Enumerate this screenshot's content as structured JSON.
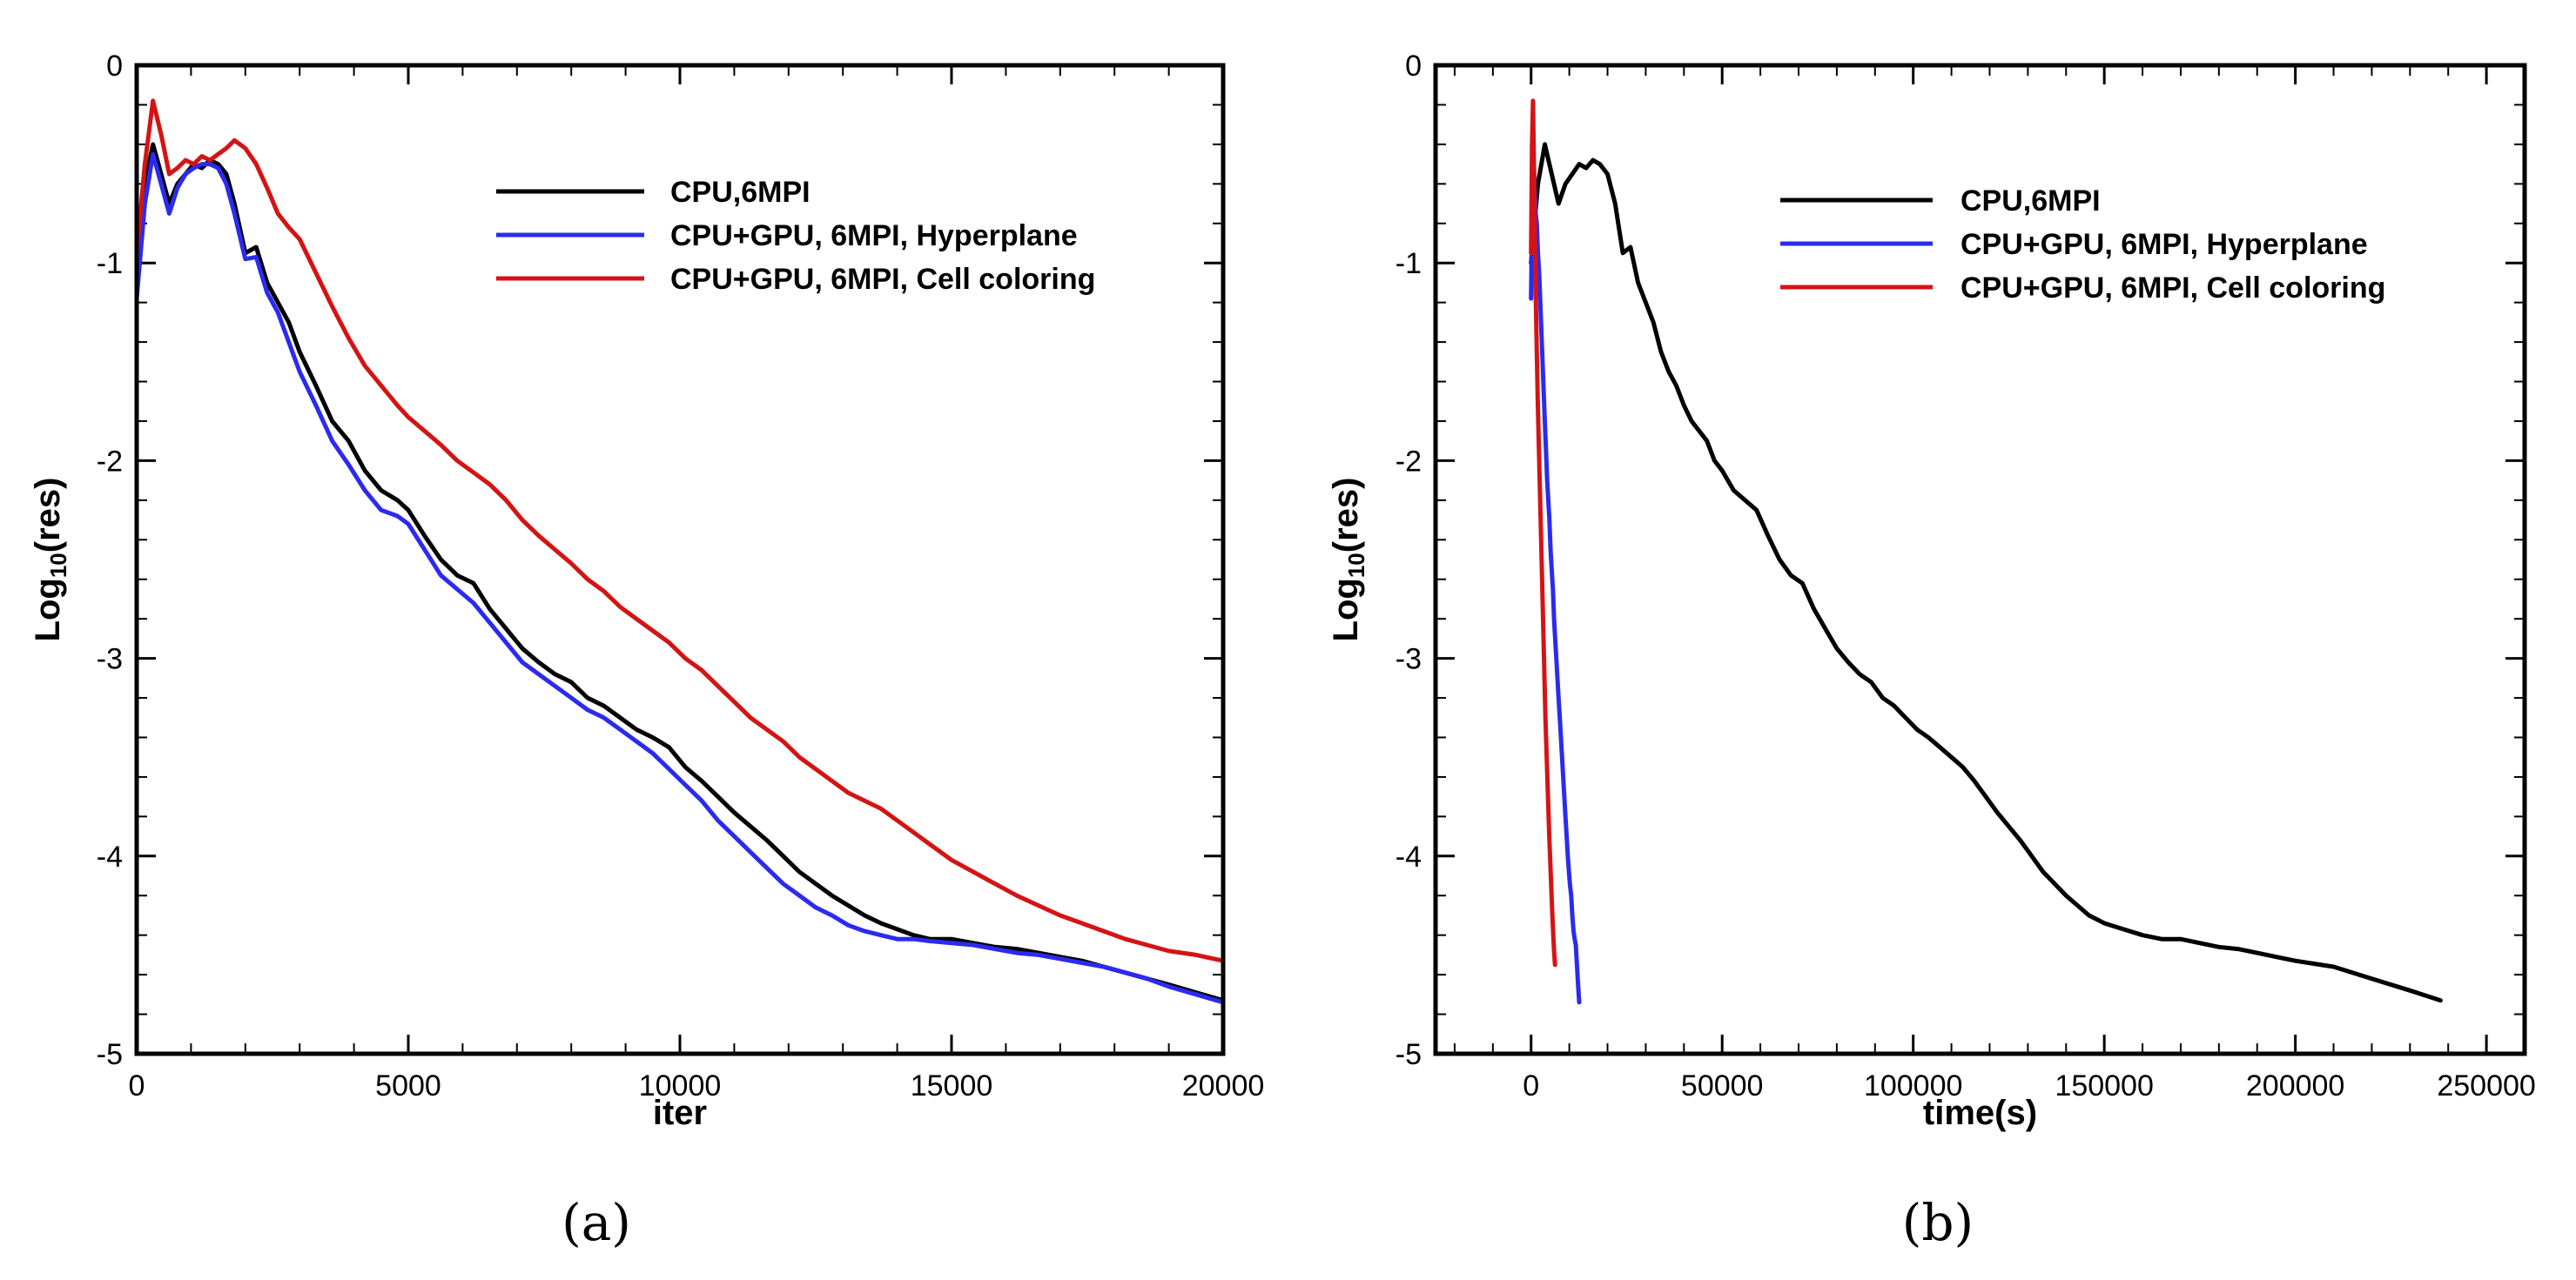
{
  "chart_data": [
    {
      "type": "line",
      "panel_label": "(a)",
      "xlabel": "iter",
      "ylabel_base": "Log",
      "ylabel_sub": "10",
      "ylabel_rest": "(res)",
      "xlim": [
        0,
        20000
      ],
      "ylim": [
        -5,
        0
      ],
      "xticks": [
        0,
        5000,
        10000,
        15000,
        20000
      ],
      "yticks": [
        0,
        -1,
        -2,
        -3,
        -4,
        -5
      ],
      "ytick_labels": [
        "0",
        "-1",
        "-2",
        "-3",
        "-4",
        "-5"
      ],
      "legend_position": "top-right",
      "series": [
        {
          "name": "CPU,6MPI",
          "color": "#000000",
          "x": [
            0,
            150,
            300,
            450,
            600,
            750,
            900,
            1050,
            1200,
            1350,
            1500,
            1650,
            1800,
            2000,
            2200,
            2400,
            2600,
            2800,
            3000,
            3300,
            3600,
            3900,
            4200,
            4500,
            4800,
            5000,
            5300,
            5600,
            5900,
            6200,
            6500,
            6800,
            7100,
            7400,
            7700,
            8000,
            8300,
            8600,
            8900,
            9200,
            9500,
            9800,
            10100,
            10400,
            10700,
            11000,
            11300,
            11600,
            11900,
            12200,
            12500,
            12800,
            13100,
            13400,
            13700,
            14000,
            14300,
            14600,
            15000,
            15400,
            15800,
            16200,
            16600,
            17000,
            17400,
            17800,
            18200,
            18600,
            19000,
            19500,
            20000
          ],
          "y": [
            -1.0,
            -0.6,
            -0.4,
            -0.55,
            -0.7,
            -0.6,
            -0.55,
            -0.5,
            -0.52,
            -0.48,
            -0.5,
            -0.55,
            -0.7,
            -0.95,
            -0.92,
            -1.1,
            -1.2,
            -1.3,
            -1.45,
            -1.62,
            -1.8,
            -1.9,
            -2.05,
            -2.15,
            -2.2,
            -2.25,
            -2.38,
            -2.5,
            -2.58,
            -2.62,
            -2.75,
            -2.85,
            -2.95,
            -3.02,
            -3.08,
            -3.12,
            -3.2,
            -3.24,
            -3.3,
            -3.36,
            -3.4,
            -3.45,
            -3.55,
            -3.62,
            -3.7,
            -3.78,
            -3.85,
            -3.92,
            -4.0,
            -4.08,
            -4.14,
            -4.2,
            -4.25,
            -4.3,
            -4.34,
            -4.37,
            -4.4,
            -4.42,
            -4.42,
            -4.44,
            -4.46,
            -4.47,
            -4.49,
            -4.51,
            -4.53,
            -4.56,
            -4.59,
            -4.62,
            -4.65,
            -4.69,
            -4.73
          ]
        },
        {
          "name": "CPU+GPU, 6MPI, Hyperplane",
          "color": "#2b2bef",
          "x": [
            0,
            150,
            300,
            450,
            600,
            750,
            900,
            1050,
            1200,
            1350,
            1500,
            1650,
            1800,
            2000,
            2200,
            2400,
            2600,
            2800,
            3000,
            3300,
            3600,
            3900,
            4200,
            4500,
            4800,
            5000,
            5300,
            5600,
            5900,
            6200,
            6500,
            6800,
            7100,
            7400,
            7700,
            8000,
            8300,
            8600,
            8900,
            9200,
            9500,
            9800,
            10100,
            10400,
            10700,
            11000,
            11300,
            11600,
            11900,
            12200,
            12500,
            12800,
            13100,
            13400,
            13700,
            14000,
            14300,
            14600,
            15000,
            15400,
            15800,
            16200,
            16600,
            17000,
            17400,
            17800,
            18200,
            18600,
            19000,
            19500,
            20000
          ],
          "y": [
            -1.18,
            -0.7,
            -0.45,
            -0.6,
            -0.75,
            -0.62,
            -0.55,
            -0.52,
            -0.5,
            -0.5,
            -0.52,
            -0.6,
            -0.75,
            -0.98,
            -0.97,
            -1.15,
            -1.25,
            -1.4,
            -1.55,
            -1.72,
            -1.9,
            -2.02,
            -2.15,
            -2.25,
            -2.28,
            -2.32,
            -2.45,
            -2.58,
            -2.65,
            -2.72,
            -2.82,
            -2.92,
            -3.02,
            -3.08,
            -3.14,
            -3.2,
            -3.26,
            -3.3,
            -3.36,
            -3.42,
            -3.48,
            -3.56,
            -3.64,
            -3.72,
            -3.82,
            -3.9,
            -3.98,
            -4.06,
            -4.14,
            -4.2,
            -4.26,
            -4.3,
            -4.35,
            -4.38,
            -4.4,
            -4.42,
            -4.42,
            -4.43,
            -4.44,
            -4.45,
            -4.47,
            -4.49,
            -4.5,
            -4.52,
            -4.54,
            -4.56,
            -4.59,
            -4.62,
            -4.66,
            -4.7,
            -4.74
          ]
        },
        {
          "name": "CPU+GPU, 6MPI, Cell coloring",
          "color": "#d41414",
          "x": [
            0,
            150,
            300,
            450,
            600,
            750,
            900,
            1050,
            1200,
            1350,
            1500,
            1650,
            1800,
            2000,
            2200,
            2400,
            2600,
            2800,
            3000,
            3300,
            3600,
            3900,
            4200,
            4500,
            4800,
            5000,
            5300,
            5600,
            5900,
            6200,
            6500,
            6800,
            7100,
            7400,
            7700,
            8000,
            8300,
            8600,
            8900,
            9200,
            9500,
            9800,
            10100,
            10400,
            10700,
            11000,
            11300,
            11600,
            11900,
            12200,
            12500,
            12800,
            13100,
            13400,
            13700,
            14000,
            14300,
            14600,
            15000,
            15400,
            15800,
            16200,
            16600,
            17000,
            17400,
            17800,
            18200,
            18600,
            19000,
            19500,
            20000
          ],
          "y": [
            -0.95,
            -0.5,
            -0.18,
            -0.35,
            -0.55,
            -0.52,
            -0.48,
            -0.5,
            -0.46,
            -0.48,
            -0.45,
            -0.42,
            -0.38,
            -0.42,
            -0.5,
            -0.62,
            -0.75,
            -0.82,
            -0.88,
            -1.05,
            -1.22,
            -1.38,
            -1.52,
            -1.62,
            -1.72,
            -1.78,
            -1.85,
            -1.92,
            -2.0,
            -2.06,
            -2.12,
            -2.2,
            -2.3,
            -2.38,
            -2.45,
            -2.52,
            -2.6,
            -2.66,
            -2.74,
            -2.8,
            -2.86,
            -2.92,
            -3.0,
            -3.06,
            -3.14,
            -3.22,
            -3.3,
            -3.36,
            -3.42,
            -3.5,
            -3.56,
            -3.62,
            -3.68,
            -3.72,
            -3.76,
            -3.82,
            -3.88,
            -3.94,
            -4.02,
            -4.08,
            -4.14,
            -4.2,
            -4.25,
            -4.3,
            -4.34,
            -4.38,
            -4.42,
            -4.45,
            -4.48,
            -4.5,
            -4.53
          ]
        }
      ]
    },
    {
      "type": "line",
      "panel_label": "(b)",
      "xlabel": "time(s)",
      "ylabel_base": "Log",
      "ylabel_sub": "10",
      "ylabel_rest": "(res)",
      "xlim": [
        -25000,
        260000
      ],
      "ylim": [
        -5,
        0
      ],
      "xticks": [
        0,
        50000,
        100000,
        150000,
        200000,
        250000
      ],
      "yticks": [
        0,
        -1,
        -2,
        -3,
        -4,
        -5
      ],
      "ytick_labels": [
        "0",
        "-1",
        "-2",
        "-3",
        "-4",
        "-5"
      ],
      "legend_position": "top-right",
      "series": [
        {
          "name": "CPU,6MPI",
          "color": "#000000",
          "x": [
            0,
            1800,
            3600,
            5400,
            7200,
            9000,
            10800,
            12600,
            14400,
            16200,
            18000,
            20000,
            22000,
            24000,
            26000,
            28000,
            30000,
            32000,
            34000,
            36000,
            38000,
            40000,
            42000,
            44000,
            46000,
            48000,
            50000,
            53000,
            56000,
            59000,
            62000,
            65000,
            68000,
            71000,
            74000,
            77000,
            80000,
            83000,
            86000,
            89000,
            92000,
            95000,
            98000,
            101000,
            104000,
            107000,
            110000,
            113000,
            116000,
            119000,
            122000,
            125000,
            128000,
            131000,
            134000,
            137000,
            140000,
            143000,
            146000,
            150000,
            155000,
            160000,
            165000,
            170000,
            175000,
            180000,
            185000,
            190000,
            195000,
            200000,
            210000,
            220000,
            230000,
            238000
          ],
          "y": [
            -1.0,
            -0.6,
            -0.4,
            -0.55,
            -0.7,
            -0.6,
            -0.55,
            -0.5,
            -0.52,
            -0.48,
            -0.5,
            -0.55,
            -0.7,
            -0.95,
            -0.92,
            -1.1,
            -1.2,
            -1.3,
            -1.45,
            -1.55,
            -1.62,
            -1.72,
            -1.8,
            -1.85,
            -1.9,
            -2.0,
            -2.05,
            -2.15,
            -2.2,
            -2.25,
            -2.38,
            -2.5,
            -2.58,
            -2.62,
            -2.75,
            -2.85,
            -2.95,
            -3.02,
            -3.08,
            -3.12,
            -3.2,
            -3.24,
            -3.3,
            -3.36,
            -3.4,
            -3.45,
            -3.5,
            -3.55,
            -3.62,
            -3.7,
            -3.78,
            -3.85,
            -3.92,
            -4.0,
            -4.08,
            -4.14,
            -4.2,
            -4.25,
            -4.3,
            -4.34,
            -4.37,
            -4.4,
            -4.42,
            -4.42,
            -4.44,
            -4.46,
            -4.47,
            -4.49,
            -4.51,
            -4.53,
            -4.56,
            -4.62,
            -4.68,
            -4.73
          ]
        },
        {
          "name": "CPU+GPU, 6MPI, Hyperplane",
          "color": "#2b2bef",
          "x": [
            0,
            300,
            600,
            900,
            1200,
            1500,
            1800,
            2100,
            2400,
            2700,
            3000,
            3300,
            3600,
            3900,
            4200,
            4500,
            4800,
            5100,
            5400,
            5700,
            6000,
            6300,
            6600,
            6900,
            7200,
            7500,
            7800,
            8100,
            8400,
            8700,
            9000,
            9300,
            9600,
            9900,
            10200,
            10500,
            10800,
            11100,
            11400,
            11700,
            12000,
            12300,
            12600
          ],
          "y": [
            -1.18,
            -0.7,
            -0.45,
            -0.6,
            -0.75,
            -0.8,
            -0.95,
            -1.05,
            -1.2,
            -1.35,
            -1.5,
            -1.65,
            -1.8,
            -1.95,
            -2.1,
            -2.2,
            -2.3,
            -2.45,
            -2.55,
            -2.65,
            -2.8,
            -2.9,
            -3.0,
            -3.1,
            -3.2,
            -3.3,
            -3.4,
            -3.5,
            -3.6,
            -3.7,
            -3.8,
            -3.9,
            -4.0,
            -4.08,
            -4.15,
            -4.2,
            -4.3,
            -4.38,
            -4.42,
            -4.45,
            -4.55,
            -4.65,
            -4.74
          ]
        },
        {
          "name": "CPU+GPU, 6MPI, Cell coloring",
          "color": "#d41414",
          "x": [
            0,
            250,
            500,
            750,
            1000,
            1250,
            1500,
            1750,
            2000,
            2250,
            2500,
            2750,
            3000,
            3250,
            3500,
            3750,
            4000,
            4250,
            4500,
            4750,
            5000,
            5250,
            5500,
            5750,
            6000,
            6250
          ],
          "y": [
            -0.95,
            -0.4,
            -0.18,
            -0.5,
            -0.9,
            -1.2,
            -1.45,
            -1.7,
            -1.9,
            -2.1,
            -2.3,
            -2.5,
            -2.7,
            -2.9,
            -3.1,
            -3.3,
            -3.45,
            -3.6,
            -3.75,
            -3.9,
            -4.02,
            -4.15,
            -4.27,
            -4.38,
            -4.48,
            -4.55
          ]
        }
      ]
    }
  ]
}
